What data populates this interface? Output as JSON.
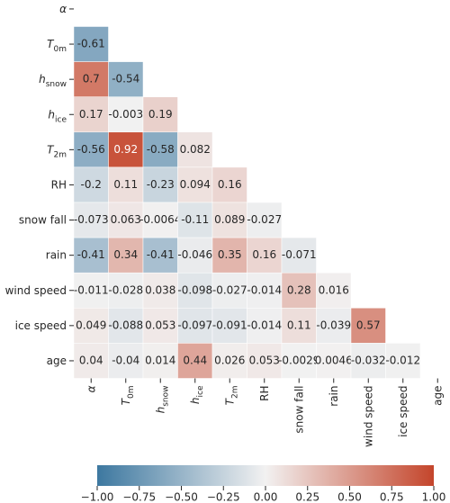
{
  "chart_data": {
    "type": "heatmap",
    "categories": [
      {
        "text": "α",
        "math": true
      },
      {
        "text": "T",
        "sub": "0m",
        "math": true
      },
      {
        "text": "h",
        "sub": "snow",
        "math": true
      },
      {
        "text": "h",
        "sub": "ice",
        "math": true
      },
      {
        "text": "T",
        "sub": "2m",
        "math": true
      },
      {
        "text": "RH"
      },
      {
        "text": "snow fall"
      },
      {
        "text": "rain"
      },
      {
        "text": "wind speed"
      },
      {
        "text": "ice speed"
      },
      {
        "text": "age"
      }
    ],
    "values": [
      [],
      [
        -0.61
      ],
      [
        0.7,
        -0.54
      ],
      [
        0.17,
        -0.003,
        0.19
      ],
      [
        -0.56,
        0.92,
        -0.58,
        0.082
      ],
      [
        -0.2,
        0.11,
        -0.23,
        0.094,
        0.16
      ],
      [
        -0.073,
        0.063,
        -0.0064,
        -0.11,
        0.089,
        -0.027
      ],
      [
        -0.41,
        0.34,
        -0.41,
        -0.046,
        0.35,
        0.16,
        -0.071
      ],
      [
        -0.011,
        -0.028,
        0.038,
        -0.098,
        -0.027,
        -0.014,
        0.28,
        0.016
      ],
      [
        0.049,
        -0.088,
        0.053,
        -0.097,
        -0.091,
        -0.014,
        0.11,
        -0.039,
        0.57
      ],
      [
        0.04,
        -0.04,
        0.014,
        0.44,
        0.026,
        0.053,
        -0.0029,
        0.0046,
        -0.032,
        -0.012
      ]
    ],
    "colors": [
      "#3d78a0",
      "#f2f1f1",
      "#c4452b"
    ],
    "clim": [
      -1,
      1
    ],
    "cticks": [
      {
        "value": -1,
        "label": "−1.00"
      },
      {
        "value": -0.75,
        "label": "−0.75"
      },
      {
        "value": -0.5,
        "label": "−0.50"
      },
      {
        "value": -0.25,
        "label": "−0.25"
      },
      {
        "value": 0,
        "label": "0.00"
      },
      {
        "value": 0.25,
        "label": "0.25"
      },
      {
        "value": 0.5,
        "label": "0.50"
      },
      {
        "value": 0.75,
        "label": "0.75"
      },
      {
        "value": 1,
        "label": "1.00"
      }
    ]
  }
}
